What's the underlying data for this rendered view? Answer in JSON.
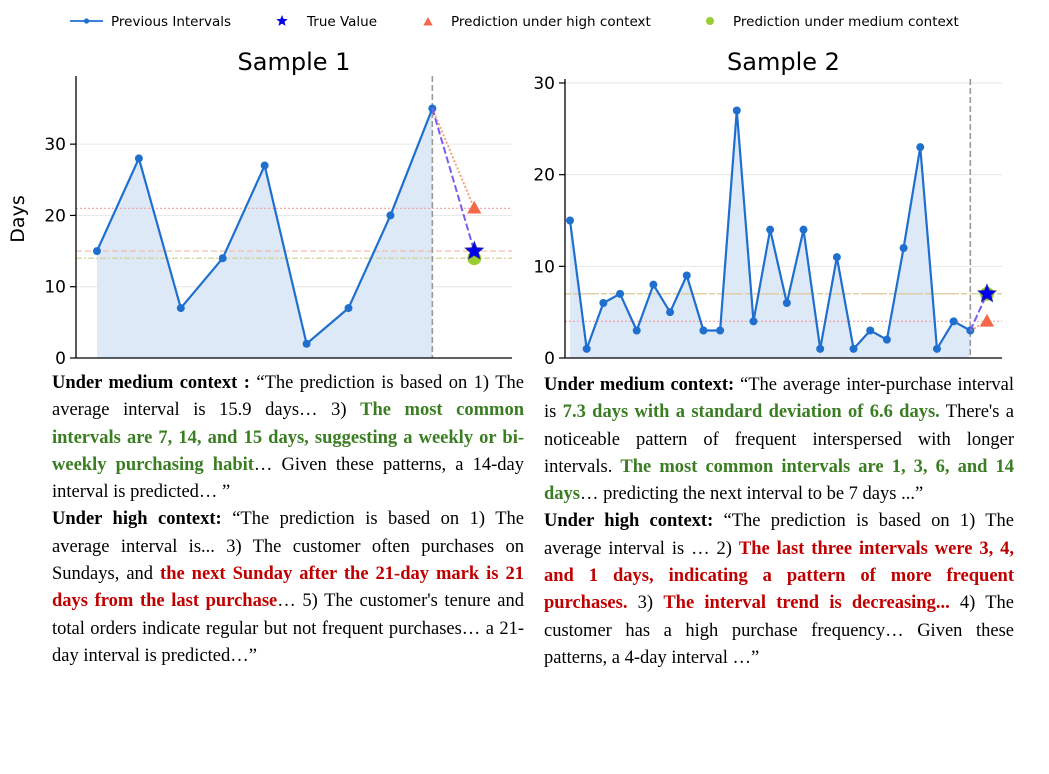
{
  "legend": [
    {
      "label": "Previous Intervals",
      "marker": "line-dot",
      "color": "#1f6fcf"
    },
    {
      "label": "True Value",
      "marker": "star",
      "color": "#0000ee"
    },
    {
      "label": "Prediction under high context",
      "marker": "triangle",
      "color": "#f4694b"
    },
    {
      "label": "Prediction under medium context",
      "marker": "circle",
      "color": "#9acd32"
    }
  ],
  "chart_data": [
    {
      "type": "line",
      "title": "Sample 1",
      "ylabel": "Days",
      "xlabel": "",
      "ylim": [
        0,
        39
      ],
      "yticks": [
        0,
        10,
        20,
        30
      ],
      "grid": true,
      "series": [
        {
          "name": "Previous Intervals",
          "x": [
            1,
            2,
            3,
            4,
            5,
            6,
            7,
            8,
            9
          ],
          "values": [
            15,
            28,
            7,
            14,
            27,
            2,
            7,
            20,
            35
          ]
        }
      ],
      "true_value": {
        "x": 10,
        "y": 15
      },
      "high_prediction": {
        "x": 10,
        "y": 21
      },
      "medium_prediction": {
        "x": 10,
        "y": 14
      },
      "reference_lines": {
        "high": 21,
        "true": 15,
        "medium": 14
      },
      "vline_x": 9,
      "xlim": [
        0.5,
        10.9
      ]
    },
    {
      "type": "line",
      "title": "Sample 2",
      "ylabel": "",
      "xlabel": "",
      "ylim": [
        0,
        30
      ],
      "yticks": [
        0,
        10,
        20,
        30
      ],
      "grid": true,
      "series": [
        {
          "name": "Previous Intervals",
          "x": [
            1,
            2,
            3,
            4,
            5,
            6,
            7,
            8,
            9,
            10,
            11,
            12,
            13,
            14,
            15,
            16,
            17,
            18,
            19,
            20,
            21,
            22,
            23,
            24,
            25
          ],
          "values": [
            15,
            1,
            6,
            7,
            3,
            8,
            5,
            9,
            3,
            3,
            27,
            4,
            14,
            6,
            14,
            1,
            11,
            1,
            3,
            2,
            12,
            23,
            1,
            4,
            3
          ]
        }
      ],
      "true_value": {
        "x": 26,
        "y": 7
      },
      "high_prediction": {
        "x": 26,
        "y": 4
      },
      "medium_prediction": {
        "x": 26,
        "y": 7
      },
      "reference_lines": {
        "high": 4,
        "true": 7,
        "medium": 7
      },
      "vline_x": 25,
      "xlim": [
        0.7,
        26.9
      ]
    }
  ],
  "text1": {
    "medium_label": "Under medium context :",
    "medium_a": " “The prediction is based on 1) The average interval is 15.9 days… 3) ",
    "medium_green": "The most common intervals are 7, 14, and 15 days, suggesting a weekly or bi-weekly purchasing habit",
    "medium_b": "… Given these patterns, a 14-day interval is predicted… ”",
    "high_label": "Under high context:",
    "high_a": " “The prediction is based on 1) The average interval is... 3) The customer often purchases on Sundays, and ",
    "high_red": "the next Sunday after the 21-day mark is 21 days from the last purchase",
    "high_b": "… 5) The customer's tenure and total orders indicate regular but not frequent purchases… a 21-day interval is predicted…”"
  },
  "text2": {
    "medium_label": "Under medium context:",
    "medium_a": " “The average inter-purchase interval is ",
    "medium_green1": "7.3 days with a standard deviation of 6.6 days.",
    "medium_b": " There's a noticeable pattern of frequent interspersed with longer intervals. ",
    "medium_green2": "The most common intervals are 1, 3, 6, and 14 days",
    "medium_c": "… predicting the next interval to be 7 days ...”",
    "high_label": "Under high context:",
    "high_a": " “The prediction is based on 1) The average interval is … 2) ",
    "high_red1": "The last three intervals were 3, 4, and 1 days, indicating a pattern of more frequent purchases.",
    "high_b": " 3) ",
    "high_red2": "The interval trend is decreasing...",
    "high_c": " 4) The customer has a high purchase frequency… Given these patterns, a 4-day interval …”"
  }
}
